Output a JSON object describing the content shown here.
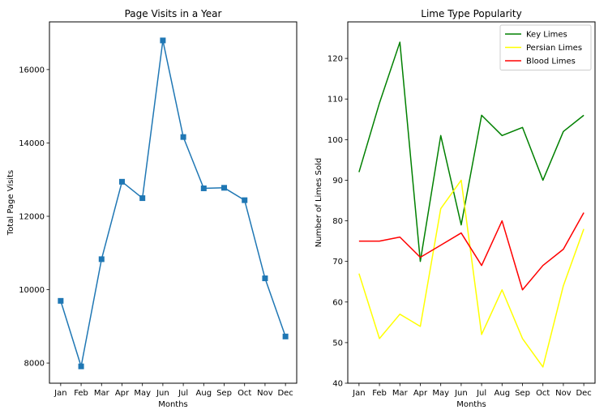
{
  "chart_data": [
    {
      "type": "line",
      "title": "Page Visits in a Year",
      "xlabel": "Months",
      "ylabel": "Total Page Visits",
      "categories": [
        "Jan",
        "Feb",
        "Mar",
        "Apr",
        "May",
        "Jun",
        "Jul",
        "Aug",
        "Sep",
        "Oct",
        "Nov",
        "Dec"
      ],
      "ylim": [
        7450,
        17300
      ],
      "yticks": [
        8000,
        10000,
        12000,
        14000,
        16000
      ],
      "marker": "square",
      "grid": false,
      "series": [
        {
          "color": "#1f77b4",
          "values": [
            9695,
            7909,
            10831,
            12942,
            12495,
            16794,
            14161,
            12762,
            12777,
            12439,
            10309,
            8724
          ]
        }
      ]
    },
    {
      "type": "line",
      "title": "Lime Type Popularity",
      "xlabel": "Months",
      "ylabel": "Number of Limes Sold",
      "categories": [
        "Jan",
        "Feb",
        "Mar",
        "Apr",
        "May",
        "Jun",
        "Jul",
        "Aug",
        "Sep",
        "Oct",
        "Nov",
        "Dec"
      ],
      "ylim": [
        40,
        129
      ],
      "yticks": [
        40,
        50,
        60,
        70,
        80,
        90,
        100,
        110,
        120
      ],
      "legend": "top-right",
      "grid": false,
      "series": [
        {
          "name": "Key Limes",
          "color": "#008000",
          "values": [
            92,
            109,
            124,
            70,
            101,
            79,
            106,
            101,
            103,
            90,
            102,
            106
          ]
        },
        {
          "name": "Persian Limes",
          "color": "#ffff00",
          "values": [
            67,
            51,
            57,
            54,
            83,
            90,
            52,
            63,
            51,
            44,
            64,
            78
          ]
        },
        {
          "name": "Blood Limes",
          "color": "#ff0000",
          "values": [
            75,
            75,
            76,
            71,
            74,
            77,
            69,
            80,
            63,
            69,
            73,
            82
          ]
        }
      ]
    }
  ]
}
